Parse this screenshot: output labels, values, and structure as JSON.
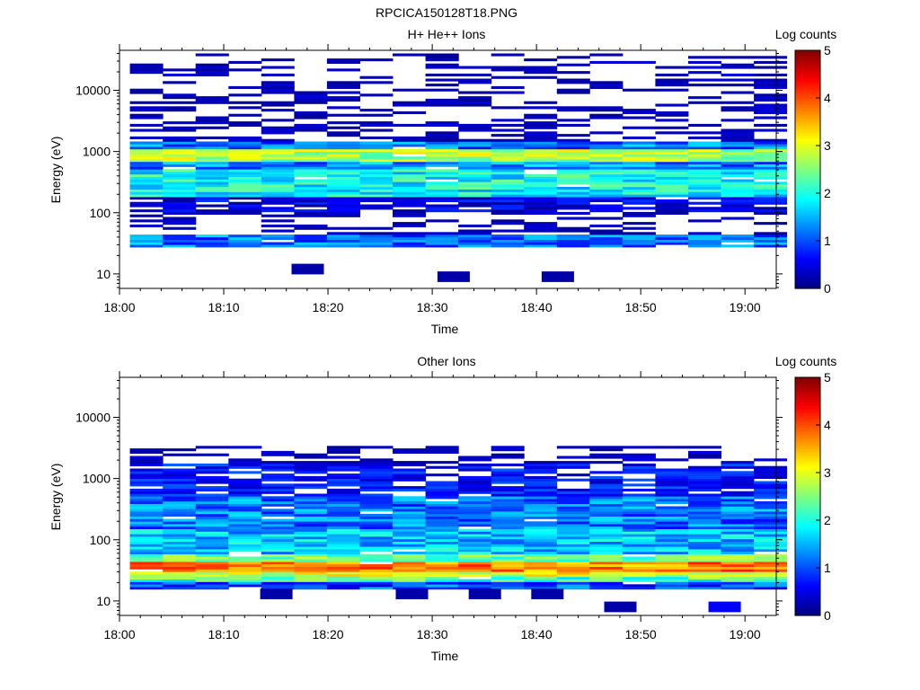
{
  "figure_title": "RPCICA150128T18.PNG",
  "chart_data": [
    {
      "type": "heatmap",
      "title": "H+ He++ Ions",
      "xlabel": "Time",
      "ylabel": "Energy (eV)",
      "x_ticks": [
        "18:00",
        "18:10",
        "18:20",
        "18:30",
        "18:40",
        "18:50",
        "19:00"
      ],
      "x_range": [
        "18:00",
        "19:03"
      ],
      "y_scale": "log",
      "y_range": [
        5.8,
        45000
      ],
      "y_ticks": [
        "10",
        "100",
        "1000",
        "10000"
      ],
      "colorbar_label": "Log counts",
      "colorbar_range": [
        0,
        5
      ],
      "colorbar_ticks": [
        "0",
        "1",
        "2",
        "3",
        "4",
        "5"
      ],
      "time_bins": [
        "18:01",
        "18:04",
        "18:07",
        "18:10",
        "18:14",
        "18:17",
        "18:20",
        "18:23",
        "18:26",
        "18:30",
        "18:33",
        "18:36",
        "18:39",
        "18:42",
        "18:46",
        "18:49",
        "18:52",
        "18:55",
        "18:58",
        "19:01"
      ],
      "energy_bands_eV": [
        {
          "range": [
            28,
            45
          ],
          "log_counts": 1.2
        },
        {
          "range": [
            45,
            100
          ],
          "log_counts": 0.2
        },
        {
          "range": [
            100,
            180
          ],
          "log_counts": 0.5
        },
        {
          "range": [
            180,
            500
          ],
          "log_counts": 1.9
        },
        {
          "range": [
            500,
            700
          ],
          "log_counts": 1.3
        },
        {
          "range": [
            700,
            1100
          ],
          "log_counts": 2.7
        },
        {
          "range": [
            1100,
            1400
          ],
          "log_counts": 1.2
        },
        {
          "range": [
            1400,
            40000
          ],
          "log_counts": 0.2
        }
      ],
      "low_energy_events": [
        {
          "time": "18:18",
          "energy_eV": 12,
          "log_counts": 0.2
        },
        {
          "time": "18:32",
          "energy_eV": 9,
          "log_counts": 0.2
        },
        {
          "time": "18:42",
          "energy_eV": 9,
          "log_counts": 0.2
        }
      ]
    },
    {
      "type": "heatmap",
      "title": "Other Ions",
      "xlabel": "Time",
      "ylabel": "Energy (eV)",
      "x_ticks": [
        "18:00",
        "18:10",
        "18:20",
        "18:30",
        "18:40",
        "18:50",
        "19:00"
      ],
      "x_range": [
        "18:00",
        "19:03"
      ],
      "y_scale": "log",
      "y_range": [
        5.8,
        45000
      ],
      "y_ticks": [
        "10",
        "100",
        "1000",
        "10000"
      ],
      "colorbar_label": "Log counts",
      "colorbar_range": [
        0,
        5
      ],
      "colorbar_ticks": [
        "0",
        "1",
        "2",
        "3",
        "4",
        "5"
      ],
      "energy_bands_eV": [
        {
          "range": [
            16,
            20
          ],
          "log_counts": 1.0
        },
        {
          "range": [
            20,
            25
          ],
          "log_counts": 2.2
        },
        {
          "range": [
            25,
            30
          ],
          "log_counts": 3.0
        },
        {
          "range": [
            30,
            42
          ],
          "log_counts": 3.7
        },
        {
          "range": [
            42,
            60
          ],
          "log_counts": 2.4
        },
        {
          "range": [
            60,
            150
          ],
          "log_counts": 1.6
        },
        {
          "range": [
            150,
            500
          ],
          "log_counts": 1.2
        },
        {
          "range": [
            500,
            1800
          ],
          "log_counts": 0.7
        },
        {
          "range": [
            1800,
            3500
          ],
          "log_counts": 0.2
        }
      ],
      "low_energy_events": [
        {
          "time": "18:15",
          "energy_eV": 13,
          "log_counts": 0.2
        },
        {
          "time": "18:28",
          "energy_eV": 13,
          "log_counts": 0.2
        },
        {
          "time": "18:35",
          "energy_eV": 13,
          "log_counts": 0.2
        },
        {
          "time": "18:41",
          "energy_eV": 13,
          "log_counts": 0.2
        },
        {
          "time": "18:48",
          "energy_eV": 8,
          "log_counts": 0.2
        },
        {
          "time": "18:58",
          "energy_eV": 8,
          "log_counts": 0.6
        }
      ]
    }
  ]
}
